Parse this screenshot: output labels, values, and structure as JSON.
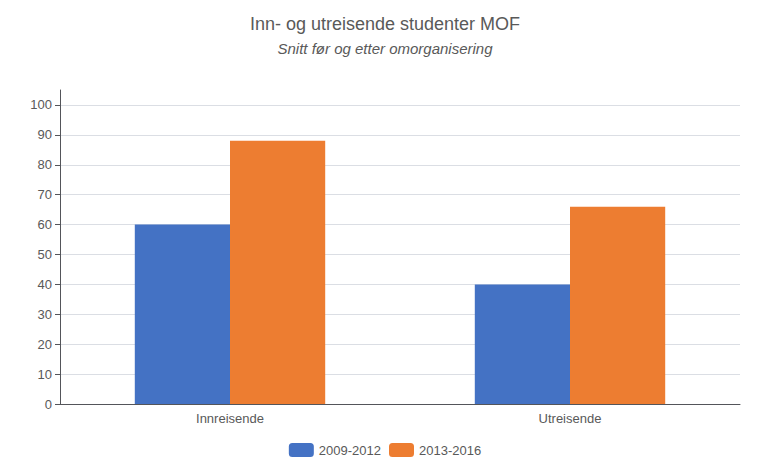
{
  "chart_data": {
    "type": "bar",
    "title": "Inn- og utreisende studenter MOF",
    "subtitle": "Snitt før og etter omorganisering",
    "categories": [
      "Innreisende",
      "Utreisende"
    ],
    "series": [
      {
        "name": "2009-2012",
        "color": "#4472C4",
        "values": [
          60,
          40
        ]
      },
      {
        "name": "2013-2016",
        "color": "#ED7D31",
        "values": [
          88,
          66
        ]
      }
    ],
    "ylim": [
      0,
      105
    ],
    "yticks": [
      0,
      10,
      20,
      30,
      40,
      50,
      60,
      70,
      80,
      90,
      100
    ],
    "grid": true,
    "legend": "bottom"
  }
}
